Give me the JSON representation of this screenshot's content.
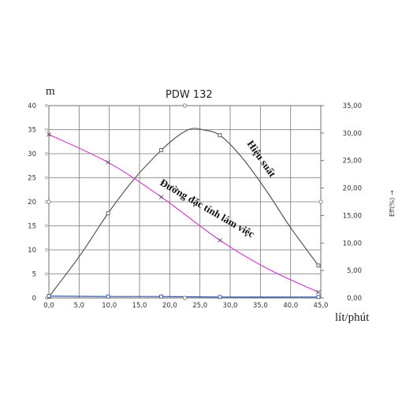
{
  "chart_data": {
    "type": "line",
    "title": "PDW 132",
    "ylabel": "m",
    "xlabel": "lít/phút",
    "y2label": "Eff(%) →",
    "xlim": [
      0,
      45
    ],
    "ylim": [
      0,
      40
    ],
    "y2lim": [
      0,
      35
    ],
    "x_ticks": [
      "0,0",
      "5,0",
      "10,0",
      "15,0",
      "20,0",
      "25,0",
      "30,0",
      "35,0",
      "40,0",
      "45,0"
    ],
    "y_ticks": [
      "0",
      "5",
      "10",
      "15",
      "20",
      "25",
      "30",
      "35",
      "40"
    ],
    "y2_ticks": [
      "0,00",
      "5,00",
      "10,00",
      "15,00",
      "20,00",
      "25,00",
      "30,00",
      "35,00"
    ],
    "grid": true,
    "series": [
      {
        "name": "Hiệu suất",
        "axis": "right",
        "color": "#555555",
        "marker": "square",
        "markers": [
          [
            0,
            0.2
          ],
          [
            9.8,
            15.4
          ],
          [
            18.6,
            26.9
          ],
          [
            28.3,
            29.6
          ],
          [
            44.6,
            5.9
          ]
        ],
        "curve": [
          [
            0,
            0.2
          ],
          [
            5,
            7.5
          ],
          [
            9.8,
            15.4
          ],
          [
            14,
            21.5
          ],
          [
            18.6,
            26.9
          ],
          [
            21.5,
            29.6
          ],
          [
            23.6,
            30.8
          ],
          [
            25.5,
            30.6
          ],
          [
            28.3,
            29.6
          ],
          [
            32,
            25.5
          ],
          [
            36,
            19.5
          ],
          [
            40,
            12.8
          ],
          [
            44.6,
            5.9
          ]
        ]
      },
      {
        "name": "Đường đặc tính làm việc",
        "axis": "left",
        "color": "#cc44cc",
        "marker": "x",
        "markers": [
          [
            0,
            34
          ],
          [
            9.8,
            28.2
          ],
          [
            18.6,
            21
          ],
          [
            28.3,
            12
          ],
          [
            44.6,
            1.2
          ]
        ],
        "curve": [
          [
            0,
            34
          ],
          [
            9.8,
            28.2
          ],
          [
            18.6,
            21
          ],
          [
            28.3,
            12
          ],
          [
            36,
            6.2
          ],
          [
            44.6,
            1.2
          ]
        ]
      },
      {
        "name": "",
        "axis": "left",
        "color": "#3355aa",
        "marker": "square",
        "markers": [
          [
            0,
            0.4
          ],
          [
            9.8,
            0.3
          ],
          [
            18.6,
            0.3
          ],
          [
            28.3,
            0.2
          ],
          [
            44.6,
            0.2
          ]
        ],
        "curve": [
          [
            0,
            0.4
          ],
          [
            9.8,
            0.3
          ],
          [
            18.6,
            0.3
          ],
          [
            28.3,
            0.2
          ],
          [
            44.6,
            0.2
          ]
        ]
      }
    ],
    "annotations": {
      "efficiency": "Hiệu suất",
      "characteristic": "Đường đặc tính làm việc"
    }
  }
}
